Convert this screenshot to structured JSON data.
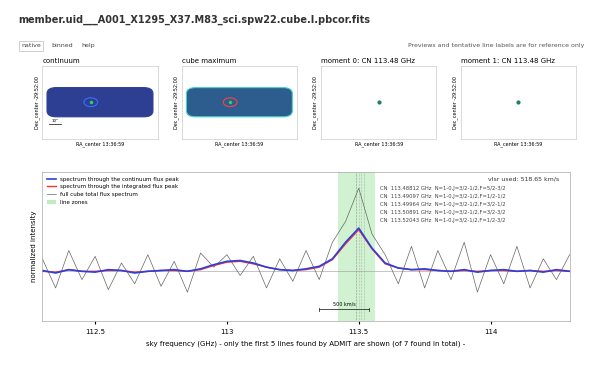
{
  "header": {
    "title": "member.uid___A001_X1295_X37.M83_sci.spw22.cube.I.pbcor.fits",
    "tabs": [
      "native",
      "binned",
      "help"
    ],
    "note": "Previews and tentative line labels are for reference only"
  },
  "maps": [
    {
      "title": "continuum",
      "xlabel": "RA_center 13:36:59",
      "ylabel": "Dec_center -29:52:00",
      "kind": "field",
      "fill": "#2c3f93",
      "edge": "#2c3f93",
      "ring": "#3b6cff",
      "scale_label": "10\""
    },
    {
      "title": "cube maximum",
      "xlabel": "RA_center 13:36:59",
      "ylabel": "Dec_center -29:52:00",
      "kind": "field",
      "fill": "#2d5c8e",
      "edge": "#3fd6d0",
      "ring": "#ff4040"
    },
    {
      "title": "moment 0: CN 113.48 GHz",
      "xlabel": "RA_center 13:36:59",
      "ylabel": "Dec_center -29:52:00",
      "kind": "dot"
    },
    {
      "title": "moment 1: CN 113.48 GHz",
      "xlabel": "RA_center 13:36:59",
      "ylabel": "Dec_center -29:52:00",
      "kind": "dot"
    }
  ],
  "chart_data": {
    "type": "line",
    "xlabel": "sky frequency (GHz) - only the first 5 lines found by ADMIT are shown (of 7 found in total) -",
    "ylabel": "normalized intensity",
    "annotation": "vlsr used: 518.65 km/s",
    "xlim": [
      112.3,
      114.3
    ],
    "ylim": [
      -0.6,
      1.2
    ],
    "xticks": [
      112.5,
      113,
      113.5,
      114
    ],
    "tick_labels": "x",
    "legend": "upper left",
    "x": [
      112.3,
      112.35,
      112.4,
      112.45,
      112.5,
      112.55,
      112.6,
      112.65,
      112.7,
      112.75,
      112.8,
      112.85,
      112.9,
      112.95,
      113.0,
      113.05,
      113.1,
      113.15,
      113.2,
      113.25,
      113.3,
      113.35,
      113.4,
      113.45,
      113.5,
      113.55,
      113.6,
      113.65,
      113.7,
      113.75,
      113.8,
      113.85,
      113.9,
      113.95,
      114.0,
      114.05,
      114.1,
      114.15,
      114.2,
      114.25,
      114.3
    ],
    "series": [
      {
        "name": "full cube total flux spectrum",
        "color": "#666666",
        "values": [
          0.15,
          -0.2,
          0.25,
          -0.1,
          0.18,
          -0.22,
          0.1,
          -0.15,
          0.2,
          -0.18,
          0.12,
          -0.25,
          0.22,
          0.05,
          0.2,
          -0.05,
          0.18,
          -0.2,
          0.15,
          -0.12,
          0.25,
          -0.1,
          0.35,
          0.6,
          1.0,
          0.45,
          0.2,
          -0.15,
          0.3,
          -0.2,
          0.25,
          -0.1,
          0.35,
          -0.25,
          0.2,
          -0.15,
          0.3,
          -0.2,
          0.15,
          -0.1,
          0.2
        ]
      },
      {
        "name": "spectrum through the integrated flux peak",
        "color": "#ff3030",
        "values": [
          0.0,
          -0.01,
          0.02,
          0.0,
          0.0,
          0.01,
          0.01,
          -0.01,
          0.0,
          0.01,
          0.01,
          0.0,
          0.02,
          0.07,
          0.11,
          0.12,
          0.09,
          0.05,
          0.02,
          0.01,
          0.02,
          0.05,
          0.14,
          0.33,
          0.5,
          0.27,
          0.09,
          0.04,
          0.02,
          0.02,
          0.01,
          0.0,
          0.01,
          0.0,
          0.01,
          0.01,
          0.0,
          0.01,
          0.0,
          0.01,
          0.0
        ]
      },
      {
        "name": "spectrum through the continuum flux peak",
        "color": "#2a3fe0",
        "values": [
          0.01,
          -0.02,
          0.02,
          0.0,
          -0.01,
          0.02,
          0.01,
          -0.02,
          0.0,
          0.01,
          0.02,
          0.0,
          0.03,
          0.08,
          0.12,
          0.13,
          0.1,
          0.05,
          0.02,
          0.01,
          0.03,
          0.06,
          0.15,
          0.35,
          0.52,
          0.28,
          0.1,
          0.04,
          0.02,
          0.03,
          0.01,
          0.0,
          0.02,
          -0.01,
          0.01,
          0.02,
          0.0,
          0.01,
          -0.01,
          0.02,
          0.0
        ]
      }
    ],
    "line_zone": {
      "name": "line zones",
      "color": "#7ddc7d",
      "x": [
        113.42,
        113.56
      ]
    },
    "lines": [
      {
        "freq": 113.48812,
        "label": "CN  113.48812 GHz  N=1-0,J=3/2-1/2,F=5/2-3/2"
      },
      {
        "freq": 113.49097,
        "label": "CN  113.49097 GHz  N=1-0,J=3/2-1/2,F=1/2-1/2"
      },
      {
        "freq": 113.49964,
        "label": "CN  113.49964 GHz  N=1-0,J=3/2-1/2,F=3/2-1/2"
      },
      {
        "freq": 113.50891,
        "label": "CN  113.50891 GHz  N=1-0,J=3/2-1/2,F=3/2-3/2"
      },
      {
        "freq": 113.52043,
        "label": "CN  113.52043 GHz  N=1-0,J=3/2-1/2,F=1/2-3/2"
      }
    ],
    "scale_bar": {
      "label": "500 km/s",
      "x": [
        113.35,
        113.54
      ]
    }
  }
}
